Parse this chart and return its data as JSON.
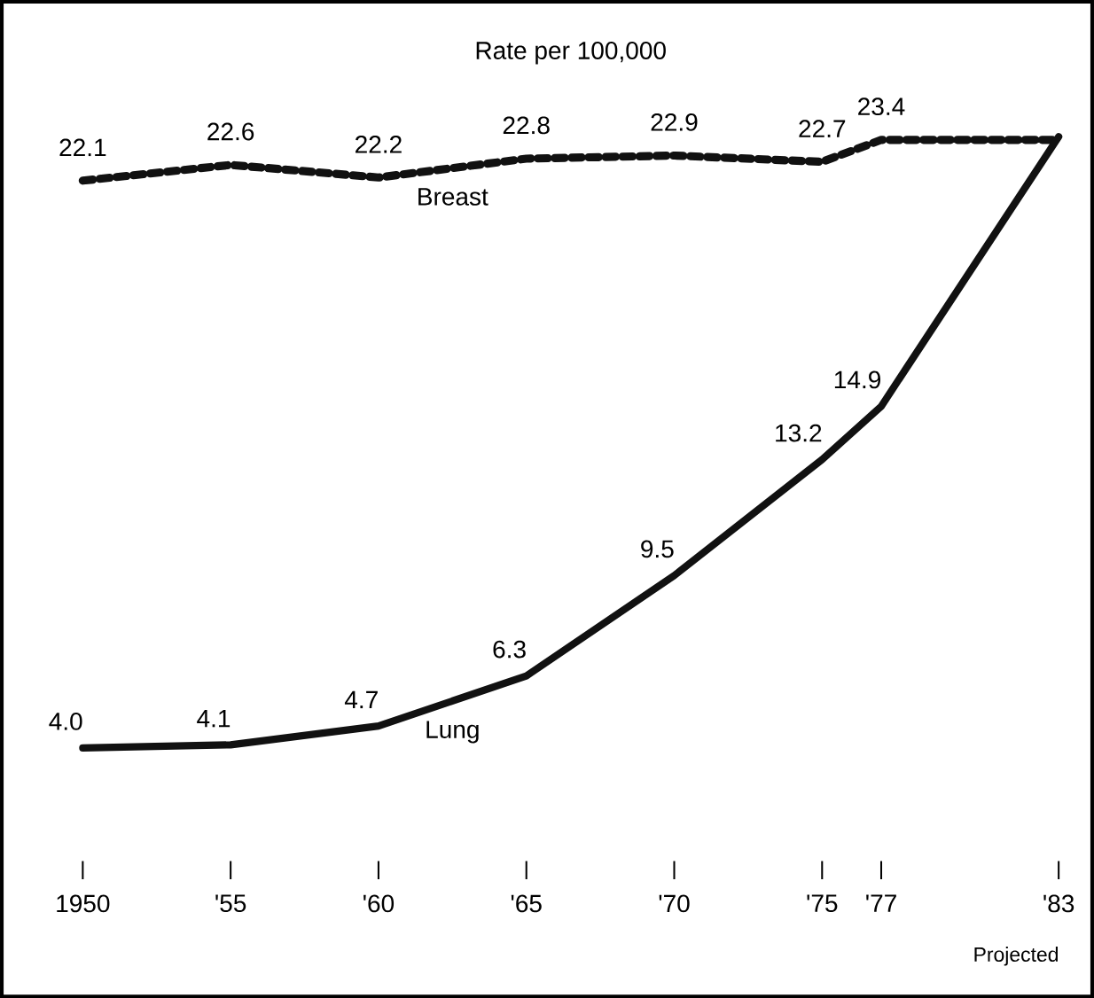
{
  "chart_data": {
    "type": "line",
    "title": "Rate per 100,000",
    "x": [
      1950,
      1955,
      1960,
      1965,
      1970,
      1975,
      1977,
      1983
    ],
    "xlim": [
      1950,
      1983
    ],
    "xticks": [
      1950,
      {
        "value": 1955,
        "label": "'55"
      },
      {
        "value": 1960,
        "label": "'60"
      },
      {
        "value": 1965,
        "label": "'65"
      },
      {
        "value": 1970,
        "label": "'70"
      },
      {
        "value": 1975,
        "label": "'75"
      },
      {
        "value": 1977,
        "label": "'77"
      },
      {
        "value": 1983,
        "label": "'83"
      }
    ],
    "series": [
      {
        "name": "Breast",
        "color": "#111111",
        "line_style": "dotted",
        "values": [
          22.1,
          22.6,
          22.2,
          22.8,
          22.9,
          22.7,
          23.4,
          23.4
        ],
        "value_labels": [
          "22.1",
          "22.6",
          "22.2",
          "22.8",
          "22.9",
          "22.7",
          "23.4",
          null
        ]
      },
      {
        "name": "Lung",
        "color": "#111111",
        "line_style": "solid",
        "values": [
          4.0,
          4.1,
          4.7,
          6.3,
          9.5,
          13.2,
          14.9,
          23.5
        ],
        "value_labels": [
          "4.0",
          "4.1",
          "4.7",
          "6.3",
          "9.5",
          "13.2",
          "14.9",
          null
        ]
      }
    ],
    "annotations": [
      "Projected"
    ]
  }
}
